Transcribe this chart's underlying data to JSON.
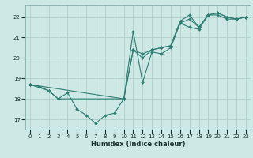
{
  "xlabel": "Humidex (Indice chaleur)",
  "xlim": [
    -0.5,
    23.5
  ],
  "ylim": [
    16.5,
    22.6
  ],
  "yticks": [
    17,
    18,
    19,
    20,
    21,
    22
  ],
  "xticks": [
    0,
    1,
    2,
    3,
    4,
    5,
    6,
    7,
    8,
    9,
    10,
    11,
    12,
    13,
    14,
    15,
    16,
    17,
    18,
    19,
    20,
    21,
    22,
    23
  ],
  "background_color": "#cde8e5",
  "grid_color": "#b0d0cd",
  "line_color": "#2e7d72",
  "lines": [
    {
      "x": [
        0,
        1,
        2,
        3,
        4,
        5,
        6,
        7,
        8,
        9,
        10,
        11,
        12,
        13,
        14,
        15,
        16,
        17,
        18,
        19,
        20,
        21,
        22,
        23
      ],
      "y": [
        18.7,
        18.6,
        18.4,
        18.0,
        18.3,
        17.5,
        17.2,
        16.8,
        17.2,
        17.3,
        18.0,
        21.3,
        18.8,
        20.3,
        20.2,
        20.5,
        21.7,
        21.5,
        21.4,
        22.1,
        22.1,
        21.9,
        21.9,
        22.0
      ]
    },
    {
      "x": [
        0,
        2,
        3,
        10,
        11,
        12,
        13,
        14,
        15,
        16,
        17,
        18,
        19,
        20,
        21,
        22,
        23
      ],
      "y": [
        18.7,
        18.4,
        18.0,
        18.0,
        20.4,
        20.2,
        20.4,
        20.5,
        20.6,
        21.7,
        21.9,
        21.5,
        22.1,
        22.2,
        22.0,
        21.9,
        22.0
      ]
    },
    {
      "x": [
        0,
        10,
        11,
        12,
        13,
        14,
        15,
        16,
        17,
        18,
        19,
        20,
        21,
        22,
        23
      ],
      "y": [
        18.7,
        18.0,
        20.4,
        20.0,
        20.4,
        20.5,
        20.6,
        21.8,
        22.1,
        21.5,
        22.1,
        22.2,
        22.0,
        21.9,
        22.0
      ]
    }
  ]
}
